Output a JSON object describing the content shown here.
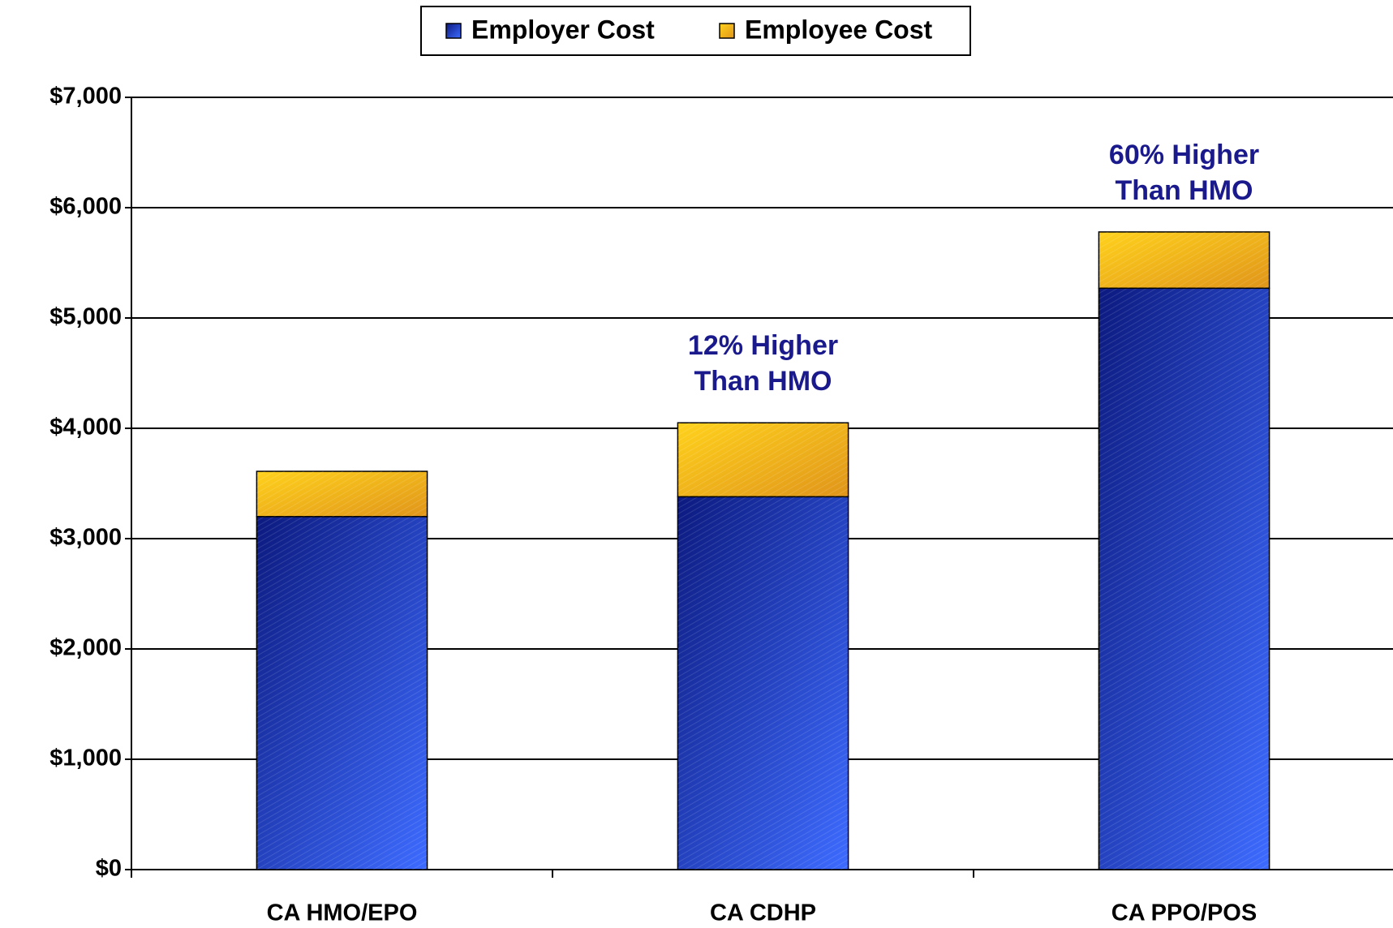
{
  "chart_data": {
    "type": "stacked_bar",
    "categories": [
      "CA HMO/EPO",
      "CA CDHP",
      "CA PPO/POS"
    ],
    "series": [
      {
        "name": "Employer Cost",
        "color": "#2a44d8",
        "values": [
          3200,
          3380,
          5270
        ]
      },
      {
        "name": "Employee Cost",
        "color": "#f2b81c",
        "values": [
          410,
          670,
          510
        ]
      }
    ],
    "annotations": [
      {
        "lines": [
          "12% Higher",
          "Than HMO"
        ]
      },
      {
        "lines": [
          "60% Higher",
          "Than HMO"
        ]
      }
    ],
    "ylim": [
      0,
      7000
    ],
    "yticks": [
      {
        "value": 0,
        "label": "$0"
      },
      {
        "value": 1000,
        "label": "$1,000"
      },
      {
        "value": 2000,
        "label": "$2,000"
      },
      {
        "value": 3000,
        "label": "$3,000"
      },
      {
        "value": 4000,
        "label": "$4,000"
      },
      {
        "value": 5000,
        "label": "$5,000"
      },
      {
        "value": 6000,
        "label": "$6,000"
      },
      {
        "value": 7000,
        "label": "$7,000"
      }
    ],
    "grid": true
  }
}
